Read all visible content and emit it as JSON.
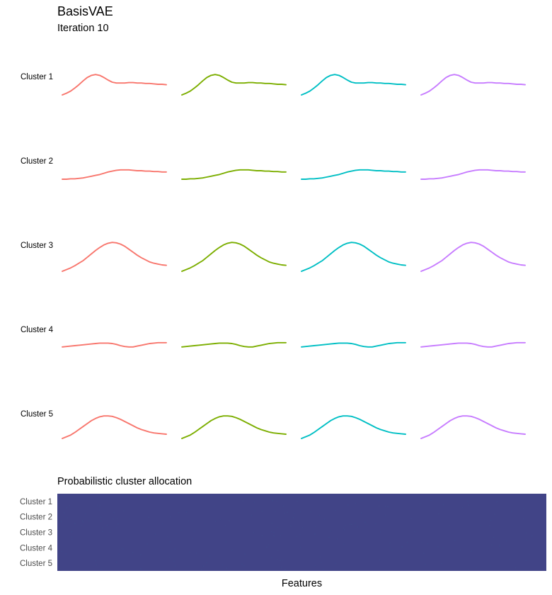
{
  "header": {
    "title": "BasisVAE",
    "subtitle": "Iteration 10"
  },
  "colors": {
    "series": [
      "#F8766D",
      "#7CAE00",
      "#00BFC4",
      "#C77CFF"
    ],
    "heatmap_fill": "#414487",
    "heatmap_speckle": "#3E4A89"
  },
  "chart_data": [
    {
      "type": "line",
      "title": "",
      "rows": [
        "Cluster 1",
        "Cluster 2",
        "Cluster 3",
        "Cluster 4",
        "Cluster 5"
      ],
      "columns": 4,
      "xlim": [
        0,
        1
      ],
      "ylim": [
        0,
        1
      ],
      "grid": false,
      "legend": "none",
      "x": [
        0,
        0.04,
        0.08,
        0.12,
        0.16,
        0.2,
        0.24,
        0.28,
        0.32,
        0.36,
        0.4,
        0.44,
        0.48,
        0.52,
        0.56,
        0.6,
        0.64,
        0.68,
        0.72,
        0.76,
        0.8,
        0.84,
        0.88,
        0.92,
        0.96,
        1
      ],
      "curves": [
        [
          0.1,
          0.14,
          0.19,
          0.26,
          0.34,
          0.43,
          0.51,
          0.56,
          0.58,
          0.56,
          0.51,
          0.45,
          0.4,
          0.38,
          0.38,
          0.38,
          0.39,
          0.39,
          0.38,
          0.38,
          0.37,
          0.37,
          0.36,
          0.35,
          0.35,
          0.34
        ],
        [
          0.1,
          0.1,
          0.11,
          0.11,
          0.12,
          0.13,
          0.15,
          0.17,
          0.19,
          0.21,
          0.24,
          0.27,
          0.29,
          0.31,
          0.32,
          0.32,
          0.32,
          0.31,
          0.3,
          0.3,
          0.29,
          0.29,
          0.28,
          0.28,
          0.27,
          0.27
        ],
        [
          0.1,
          0.14,
          0.18,
          0.23,
          0.29,
          0.35,
          0.43,
          0.51,
          0.59,
          0.66,
          0.72,
          0.76,
          0.78,
          0.77,
          0.74,
          0.69,
          0.62,
          0.55,
          0.48,
          0.42,
          0.37,
          0.32,
          0.29,
          0.27,
          0.25,
          0.24
        ],
        [
          0.12,
          0.13,
          0.14,
          0.15,
          0.16,
          0.17,
          0.18,
          0.19,
          0.2,
          0.21,
          0.21,
          0.21,
          0.2,
          0.18,
          0.15,
          0.13,
          0.12,
          0.12,
          0.14,
          0.16,
          0.18,
          0.2,
          0.21,
          0.22,
          0.22,
          0.22
        ],
        [
          0.1,
          0.14,
          0.18,
          0.24,
          0.31,
          0.38,
          0.45,
          0.52,
          0.57,
          0.61,
          0.63,
          0.63,
          0.62,
          0.59,
          0.55,
          0.5,
          0.45,
          0.4,
          0.35,
          0.31,
          0.28,
          0.25,
          0.23,
          0.22,
          0.21,
          0.2
        ]
      ]
    },
    {
      "type": "heatmap",
      "title": "Probabilistic cluster allocation",
      "xlabel": "Features",
      "ylabel": "",
      "rows": [
        "Cluster 1",
        "Cluster 2",
        "Cluster 3",
        "Cluster 4",
        "Cluster 5"
      ],
      "value_range": [
        0,
        1
      ],
      "approx_value": 0.2
    }
  ]
}
